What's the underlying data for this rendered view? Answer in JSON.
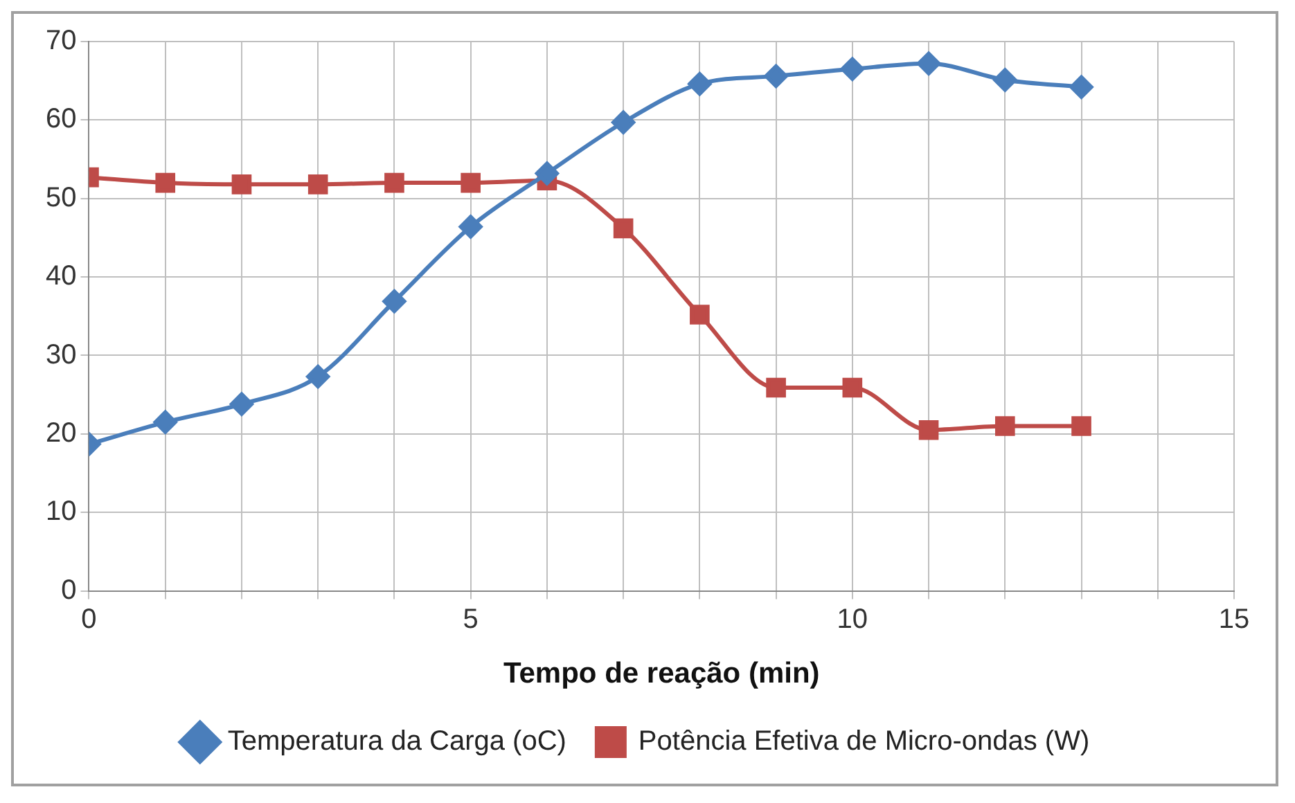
{
  "chart_data": {
    "type": "line",
    "xlabel": "Tempo de reação (min)",
    "x": [
      0,
      1,
      2,
      3,
      4,
      5,
      6,
      7,
      8,
      9,
      10,
      11,
      12,
      13
    ],
    "series": [
      {
        "name": "Temperatura da Carga (oC)",
        "color": "#4a7ebb",
        "marker": "diamond",
        "values": [
          18.7,
          21.5,
          23.8,
          27.3,
          36.9,
          46.4,
          53.2,
          59.7,
          64.6,
          65.6,
          66.5,
          67.2,
          65.1,
          64.2
        ]
      },
      {
        "name": "Potência Efetiva de Micro-ondas (W)",
        "color": "#be4b48",
        "marker": "square",
        "values": [
          52.7,
          52.0,
          51.8,
          51.8,
          52.0,
          52.0,
          52.3,
          46.2,
          35.2,
          25.9,
          25.9,
          20.5,
          21.0,
          21.0
        ]
      }
    ],
    "xlim": [
      0,
      15
    ],
    "xticks": [
      0,
      {
        "value": 1,
        "label": null
      },
      {
        "value": 2,
        "label": null
      },
      {
        "value": 3,
        "label": null
      },
      {
        "value": 4,
        "label": null
      },
      5,
      {
        "value": 6,
        "label": null
      },
      {
        "value": 7,
        "label": null
      },
      {
        "value": 8,
        "label": null
      },
      {
        "value": 9,
        "label": null
      },
      10,
      {
        "value": 11,
        "label": null
      },
      {
        "value": 12,
        "label": null
      },
      {
        "value": 13,
        "label": null
      },
      {
        "value": 14,
        "label": null
      },
      15
    ],
    "ylim": [
      0,
      70
    ],
    "yticks": [
      0,
      10,
      20,
      30,
      40,
      50,
      60,
      70
    ],
    "grid": true,
    "legend": "bottom"
  }
}
